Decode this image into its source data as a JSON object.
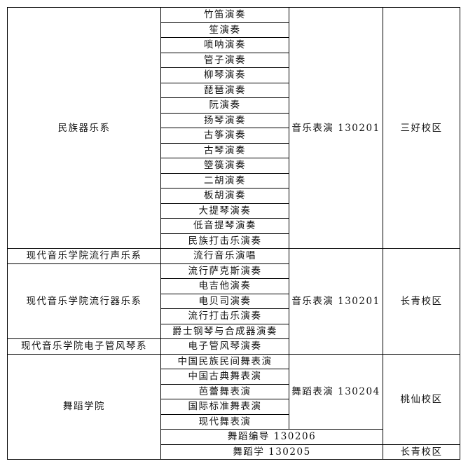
{
  "departments": [
    "民族器乐系",
    "现代音乐学院流行声乐系",
    "现代音乐学院流行器乐系",
    "现代音乐学院电子管风琴系",
    "舞蹈学院"
  ],
  "directions": [
    "竹笛演奏",
    "笙演奏",
    "唢呐演奏",
    "管子演奏",
    "柳琴演奏",
    "琵琶演奏",
    "阮演奏",
    "扬琴演奏",
    "古筝演奏",
    "古琴演奏",
    "箜篌演奏",
    "二胡演奏",
    "板胡演奏",
    "大提琴演奏",
    "低音提琴演奏",
    "民族打击乐演奏",
    "流行音乐演唱",
    "流行萨克斯演奏",
    "电吉他演奏",
    "电贝司演奏",
    "流行打击乐演奏",
    "爵士钢琴与合成器演奏",
    "电子管风琴演奏",
    "中国民族民间舞表演",
    "中国古典舞表演",
    "芭蕾舞表演",
    "国际标准舞表演",
    "现代舞表演"
  ],
  "majors": [
    "音乐表演 130201",
    "音乐表演 130201",
    "舞蹈表演 130204",
    "舞蹈编导 130206",
    "舞蹈学 130205"
  ],
  "campuses": [
    "三好校区",
    "长青校区",
    "桃仙校区",
    "长青校区"
  ]
}
